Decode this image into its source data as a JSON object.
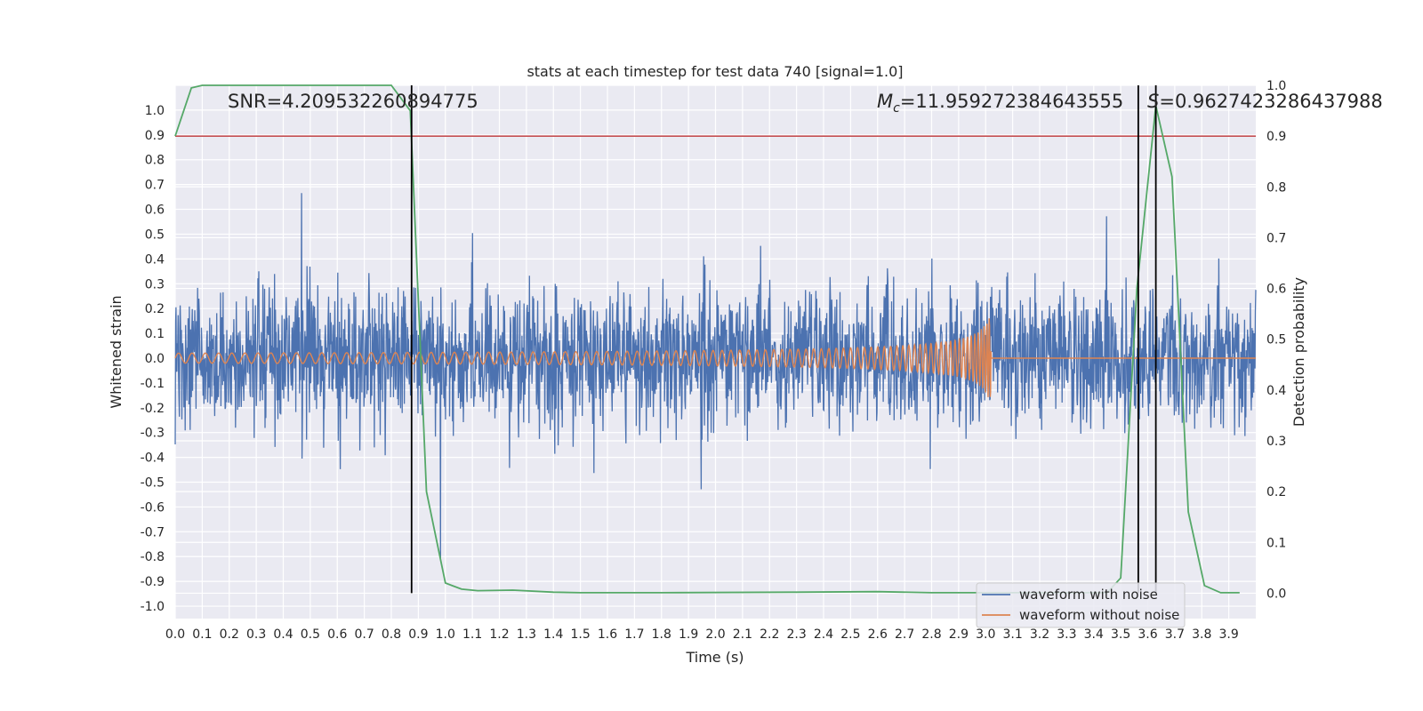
{
  "chart_data": {
    "type": "line",
    "title": "stats at each timestep for test data 740 [signal=1.0]",
    "xlabel": "Time (s)",
    "ylabel": "Whitened strain",
    "y2label": "Detection probability",
    "xlim": [
      0.0,
      4.0
    ],
    "ylim": [
      -1.05,
      1.1
    ],
    "y2lim": [
      -0.05,
      1.0
    ],
    "xticks": [
      "0.0",
      "0.1",
      "0.2",
      "0.3",
      "0.4",
      "0.5",
      "0.6",
      "0.7",
      "0.8",
      "0.9",
      "1.0",
      "1.1",
      "1.2",
      "1.3",
      "1.4",
      "1.5",
      "1.6",
      "1.7",
      "1.8",
      "1.9",
      "2.0",
      "2.1",
      "2.2",
      "2.3",
      "2.4",
      "2.5",
      "2.6",
      "2.7",
      "2.8",
      "2.9",
      "3.0",
      "3.1",
      "3.2",
      "3.3",
      "3.4",
      "3.5",
      "3.6",
      "3.7",
      "3.8",
      "3.9"
    ],
    "yticks": [
      "1.0",
      "0.9",
      "0.8",
      "0.7",
      "0.6",
      "0.5",
      "0.4",
      "0.3",
      "0.2",
      "0.1",
      "0.0",
      "-0.1",
      "-0.2",
      "-0.3",
      "-0.4",
      "-0.5",
      "-0.6",
      "-0.7",
      "-0.8",
      "-0.9",
      "-1.0"
    ],
    "y2ticks": [
      "1.0",
      "0.9",
      "0.8",
      "0.7",
      "0.6",
      "0.5",
      "0.4",
      "0.3",
      "0.2",
      "0.1",
      "0.0"
    ],
    "grid": true,
    "legend_position": "lower-right",
    "series": [
      {
        "name": "waveform with noise",
        "color": "#4c72b0",
        "kind": "noise",
        "axis": "left",
        "amplitude_envelope": [
          -0.88,
          1.0
        ]
      },
      {
        "name": "waveform without noise",
        "color": "#dd8452",
        "kind": "chirp",
        "axis": "left",
        "start": 0.0,
        "merger": 3.02,
        "end": 4.0,
        "start_amplitude": 0.01,
        "peak_amplitude": 0.17
      },
      {
        "kind": "probability",
        "color": "#55a868",
        "axis": "right",
        "x": [
          0.0,
          0.06,
          0.1,
          0.8,
          0.87,
          0.93,
          1.0,
          1.06,
          1.12,
          1.25,
          1.4,
          1.5,
          1.8,
          2.3,
          2.6,
          2.8,
          3.0,
          3.25,
          3.45,
          3.5,
          3.56,
          3.63,
          3.69,
          3.75,
          3.81,
          3.87,
          3.94
        ],
        "y": [
          0.9,
          0.995,
          1.0,
          1.0,
          0.95,
          0.2,
          0.02,
          0.008,
          0.005,
          0.006,
          0.002,
          0.001,
          0.001,
          0.002,
          0.003,
          0.001,
          0.001,
          0.001,
          0.001,
          0.03,
          0.6,
          0.96,
          0.82,
          0.16,
          0.015,
          0.001,
          0.001
        ]
      }
    ],
    "threshold": {
      "value": 0.9,
      "axis": "right",
      "color": "#c44e52"
    },
    "vertical_lines": [
      0.875,
      3.565,
      3.63
    ],
    "annotations": {
      "snr": "SNR=4.209532260894775",
      "mc_symbol": "M",
      "mc_subscript": "c",
      "mc_value": "=11.959272384643555",
      "s_symbol": "S",
      "s_value": "=0.9627423286437988"
    }
  }
}
